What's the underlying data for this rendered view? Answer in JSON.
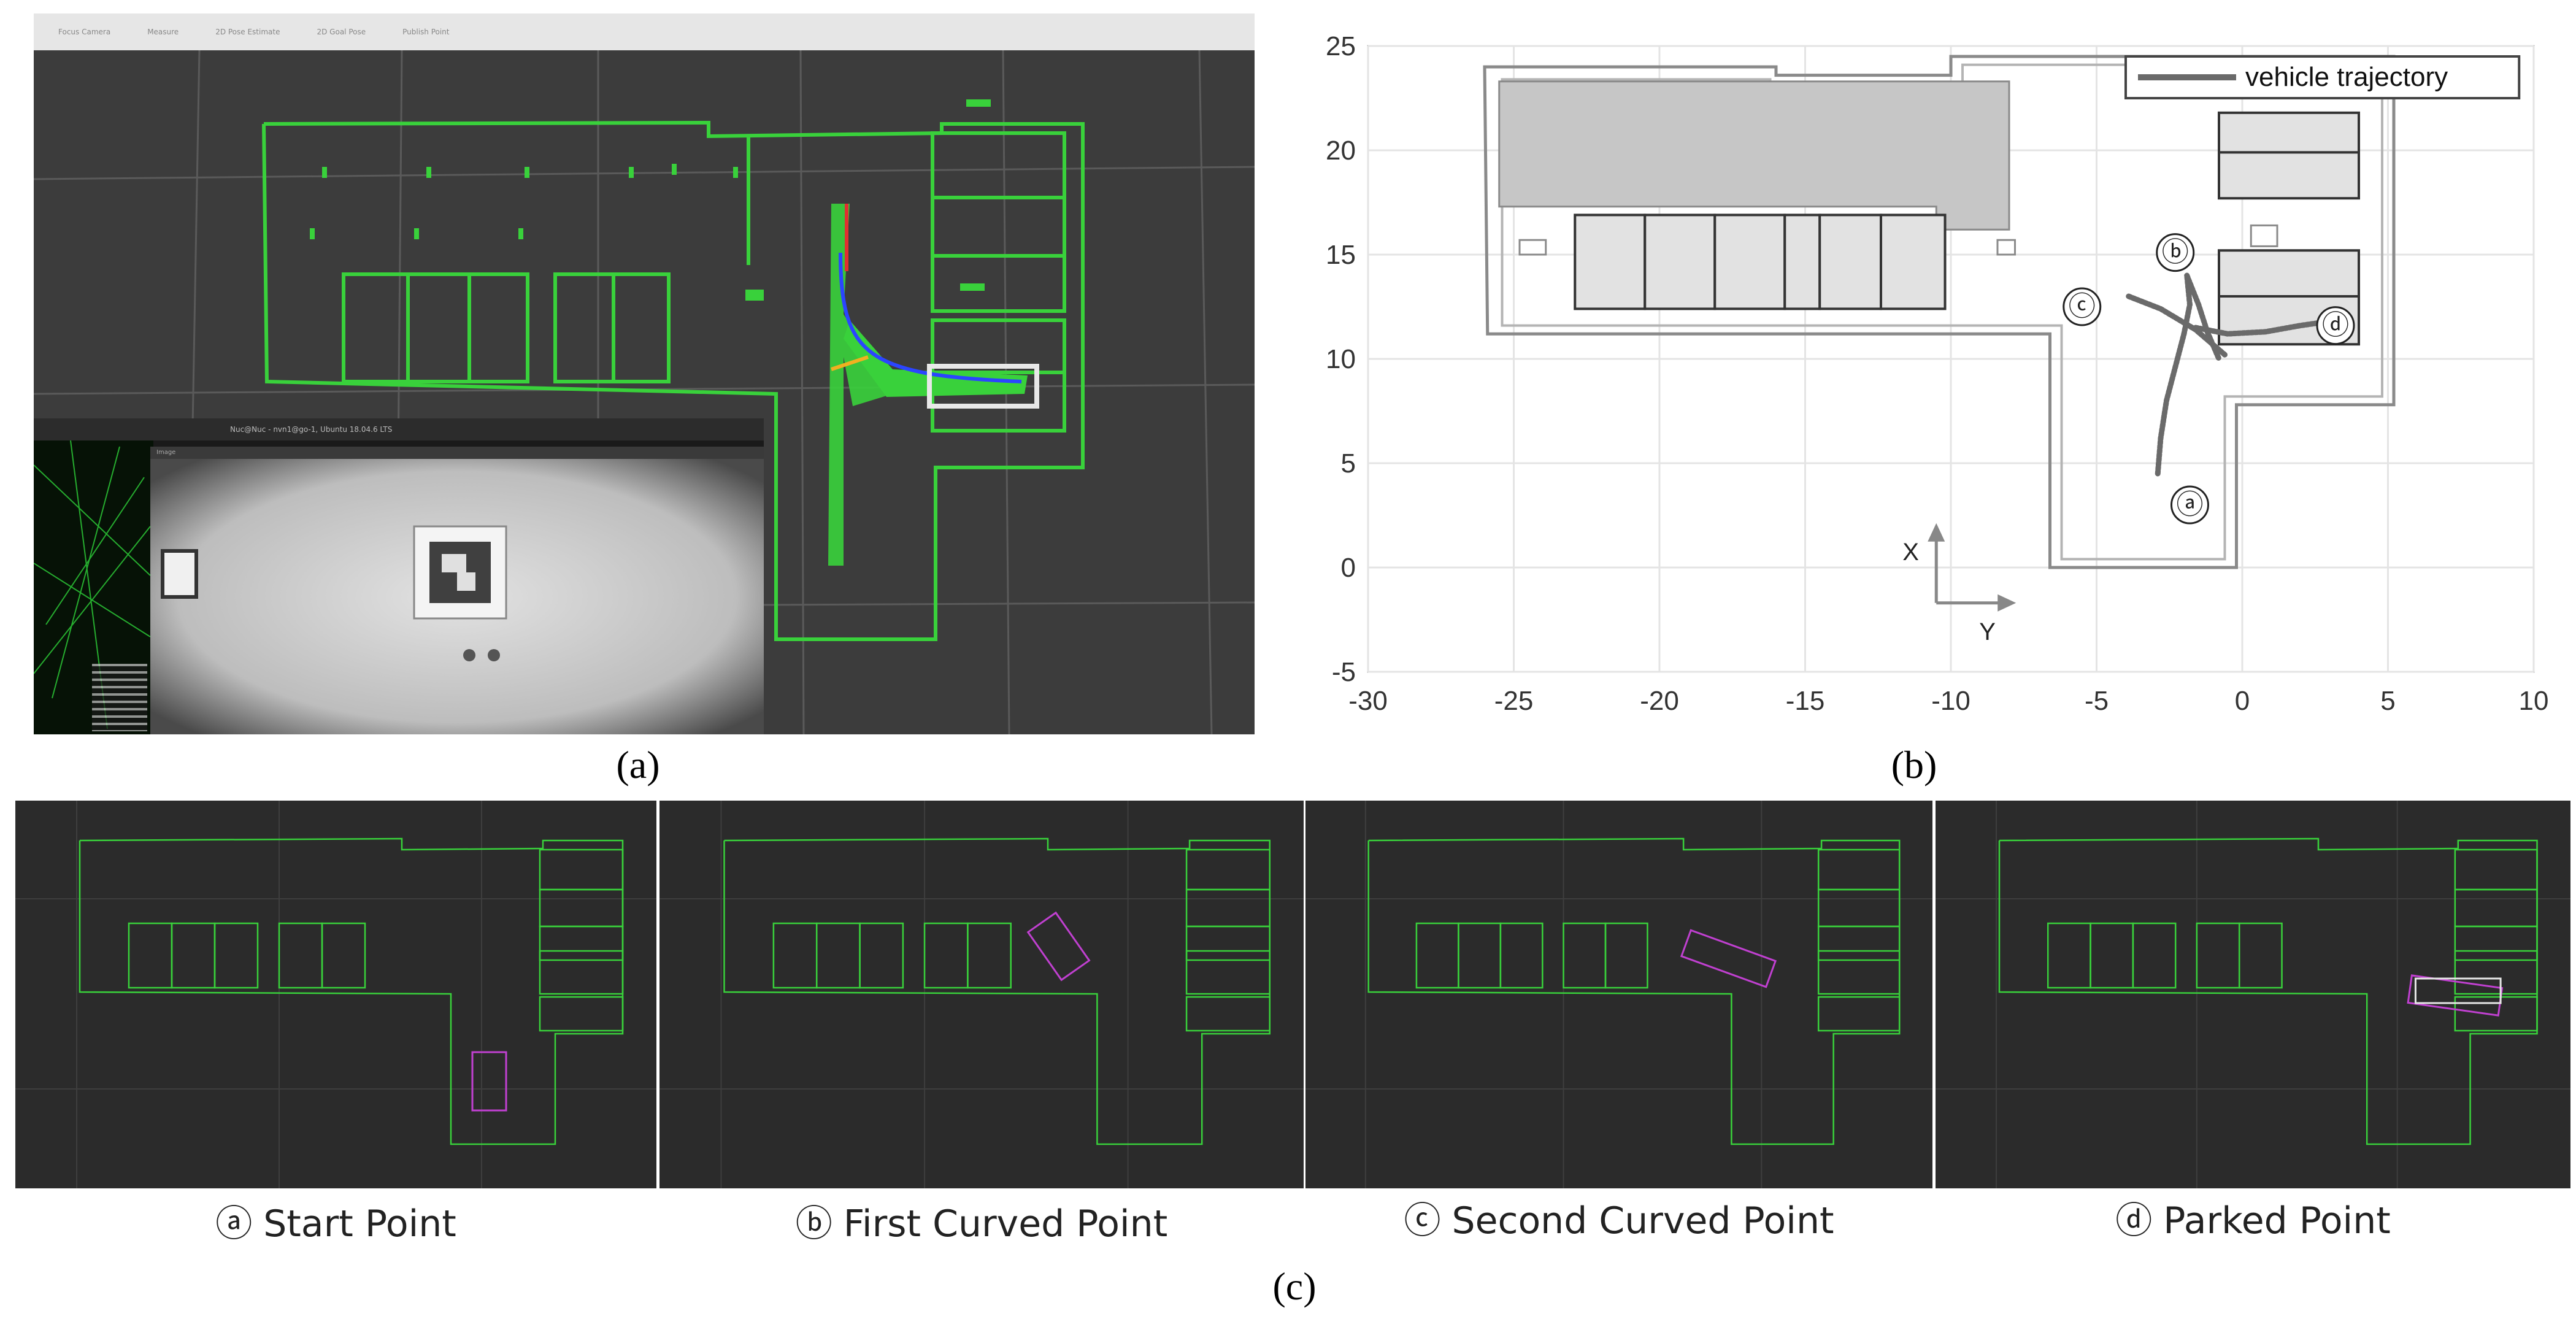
{
  "captions": {
    "a": "(a)",
    "b": "(b)",
    "c": "(c)"
  },
  "photo_a": {
    "toolbar": [
      "Focus Camera",
      "Measure",
      "2D Pose Estimate",
      "2D Goal Pose",
      "Publish Point"
    ],
    "terminal_title": "Nuc@Nuc - nvn1@go-1, Ubuntu 18.04.6 LTS",
    "image_window_title": "Image"
  },
  "chart_data": {
    "type": "line",
    "title": "",
    "xlabel": "",
    "ylabel": "",
    "xlim": [
      -30,
      10
    ],
    "ylim": [
      -5,
      25
    ],
    "x_ticks": [
      "-30",
      "-25",
      "-20",
      "-15",
      "-10",
      "-5",
      "0",
      "5",
      "10"
    ],
    "y_ticks": [
      "-5",
      "0",
      "5",
      "10",
      "15",
      "20",
      "25"
    ],
    "grid": true,
    "legend": {
      "placement": "top-right",
      "entries": [
        "vehicle trajectory"
      ]
    },
    "axis_indicator": {
      "x_label": "X",
      "y_label": "Y"
    },
    "series": [
      {
        "name": "vehicle trajectory",
        "color": "#6a6a6a",
        "segments": [
          [
            [
              -2.9,
              4.5
            ],
            [
              -2.8,
              6.2
            ],
            [
              -2.6,
              8.0
            ],
            [
              -2.3,
              9.6
            ],
            [
              -2.0,
              11.2
            ],
            [
              -1.8,
              12.6
            ],
            [
              -1.9,
              14.0
            ]
          ],
          [
            [
              -1.9,
              14.0
            ],
            [
              -1.5,
              12.6
            ],
            [
              -1.2,
              11.3
            ],
            [
              -0.8,
              10.0
            ]
          ],
          [
            [
              -3.9,
              13.0
            ],
            [
              -2.8,
              12.4
            ],
            [
              -1.6,
              11.4
            ],
            [
              -0.6,
              10.2
            ]
          ],
          [
            [
              -1.6,
              11.5
            ],
            [
              -0.5,
              11.2
            ],
            [
              0.8,
              11.3
            ],
            [
              2.0,
              11.6
            ],
            [
              3.0,
              11.8
            ]
          ]
        ]
      }
    ],
    "annotations": [
      {
        "label": "ⓐ",
        "x": -1.8,
        "y": 3.0
      },
      {
        "label": "ⓑ",
        "x": -2.3,
        "y": 15.1
      },
      {
        "label": "ⓒ",
        "x": -5.5,
        "y": 12.5
      },
      {
        "label": "ⓓ",
        "x": 3.2,
        "y": 11.6
      }
    ],
    "map_fill_dark": "#c6c6c6",
    "map_fill_light": "#e2e2e2",
    "map_outline": "#8a8a8a"
  },
  "panels_c": [
    {
      "marker": "ⓐ",
      "label": "Start Point"
    },
    {
      "marker": "ⓑ",
      "label": "First Curved Point"
    },
    {
      "marker": "ⓒ",
      "label": "Second Curved Point"
    },
    {
      "marker": "ⓓ",
      "label": "Parked Point"
    }
  ],
  "colors": {
    "map_green": "#39d13b",
    "path_blue": "#2b45ff",
    "vehicle_magenta": "#c040d0",
    "panel_bg": "#2b2b2b"
  }
}
